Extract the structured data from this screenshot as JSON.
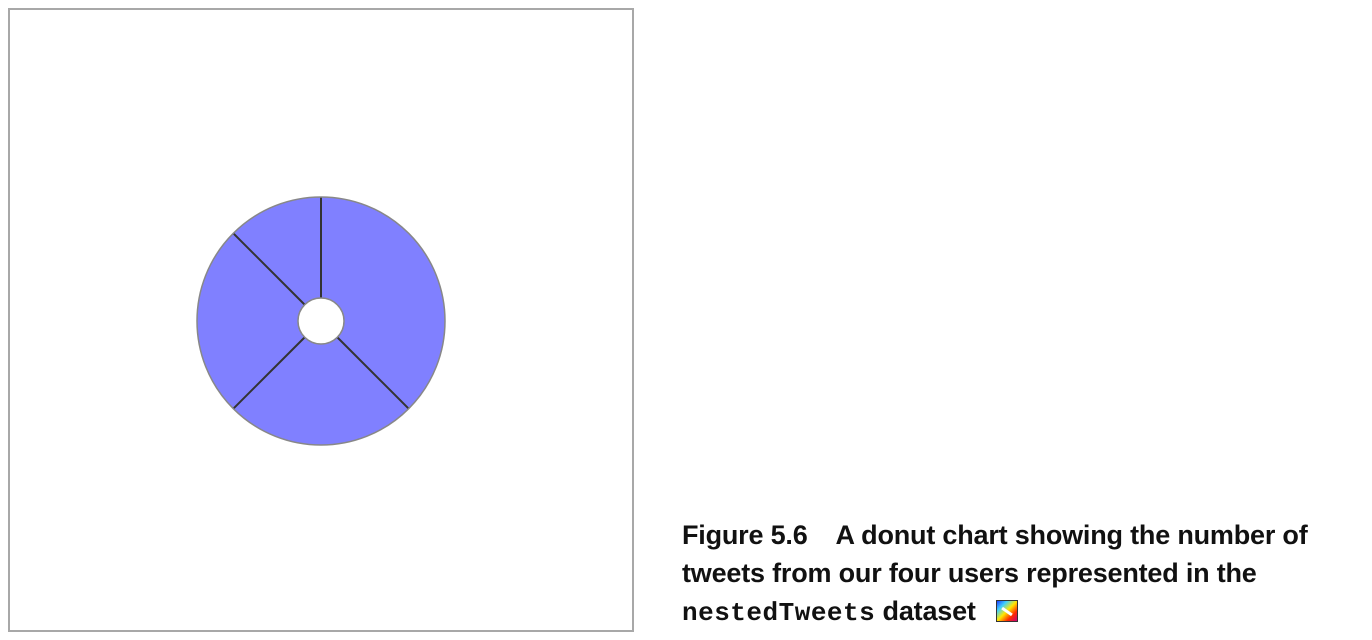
{
  "chart_data": {
    "type": "pie",
    "variant": "donut",
    "slice_color": "#8080ff",
    "stroke_color": "#333333",
    "outline_color": "#888888",
    "slices": [
      {
        "value": 3
      },
      {
        "value": 2
      },
      {
        "value": 2
      },
      {
        "value": 1
      }
    ]
  },
  "caption": {
    "figure_number": "Figure 5.6",
    "text_part1": "A donut chart showing the number of tweets from our four users represented in the",
    "code_term": "nestedTweets",
    "text_part2": "dataset",
    "icon": "live-demo-icon"
  }
}
